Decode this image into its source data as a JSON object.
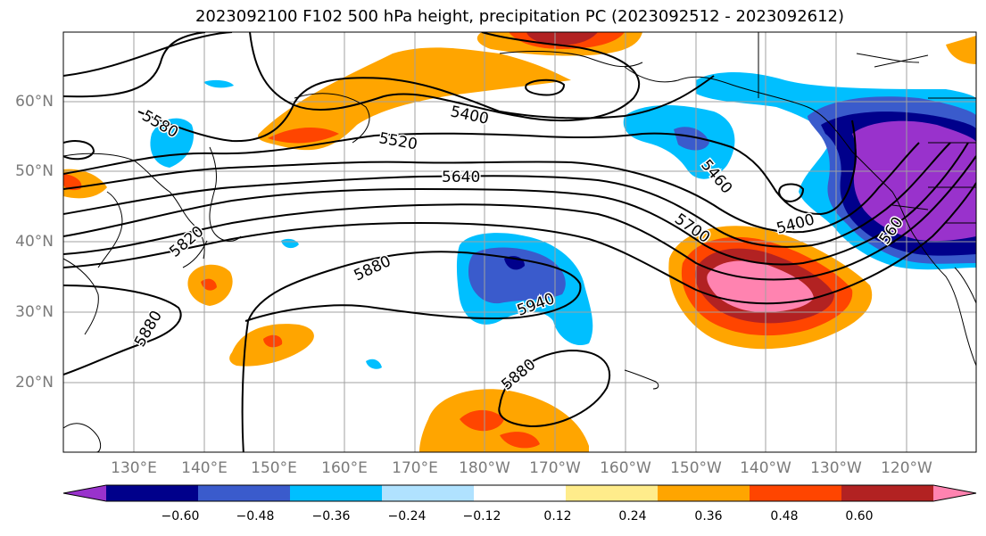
{
  "title": "2023092100 F102 500 hPa height, precipitation PC (2023092512 - 2023092612)",
  "lat_labels": [
    "60°N",
    "50°N",
    "40°N",
    "30°N",
    "20°N"
  ],
  "lon_labels": [
    "130°E",
    "140°E",
    "150°E",
    "160°E",
    "170°E",
    "180°W",
    "170°W",
    "160°W",
    "150°W",
    "140°W",
    "130°W",
    "120°W"
  ],
  "contour_labels": [
    "5580",
    "5400",
    "5520",
    "5640",
    "5460",
    "5700",
    "5400",
    "5820",
    "5880",
    "5940",
    "5880",
    "5880",
    "560"
  ],
  "colorbar": {
    "ticks": [
      "−0.60",
      "−0.48",
      "−0.36",
      "−0.24",
      "−0.12",
      "0.12",
      "0.24",
      "0.36",
      "0.48",
      "0.60"
    ],
    "colors": [
      "#9932cc",
      "#00008b",
      "#3a5bcc",
      "#00bfff",
      "#b0e2ff",
      "#ffffff",
      "#ffec8b",
      "#ffa500",
      "#ff4500",
      "#b22222",
      "#ff83b0"
    ]
  }
}
